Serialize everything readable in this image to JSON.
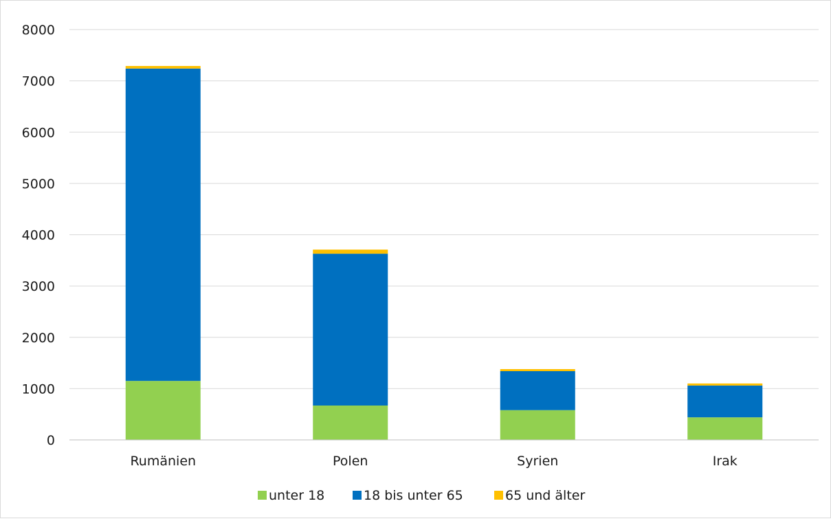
{
  "chart_data": {
    "type": "bar",
    "stacked": true,
    "categories": [
      "Rumänien",
      "Polen",
      "Syrien",
      "Irak"
    ],
    "series": [
      {
        "name": "unter 18",
        "color": "#92d050",
        "values": [
          1150,
          670,
          580,
          440
        ]
      },
      {
        "name": "18 bis unter 65",
        "color": "#0070c0",
        "values": [
          6090,
          2960,
          760,
          620
        ]
      },
      {
        "name": "65 und älter",
        "color": "#ffc000",
        "values": [
          50,
          80,
          40,
          40
        ]
      }
    ],
    "ylim": [
      0,
      8000
    ],
    "yticks": [
      0,
      1000,
      2000,
      3000,
      4000,
      5000,
      6000,
      7000,
      8000
    ],
    "grid": true,
    "legend_position": "bottom"
  }
}
